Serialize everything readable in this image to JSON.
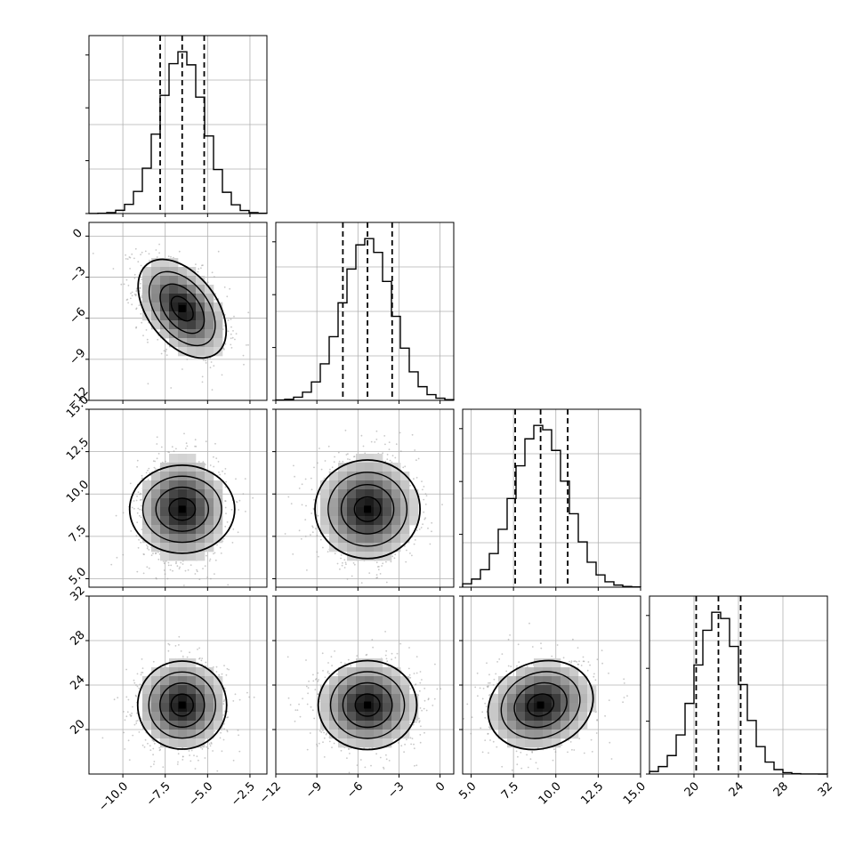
{
  "chart_data": {
    "type": "corner",
    "title": "",
    "grid": true,
    "params": [
      {
        "range": [
          -12.0,
          -1.5
        ],
        "ticks": [
          -10.0,
          -7.5,
          -5.0,
          -2.5
        ],
        "tick_labels": [
          "−10.0",
          "−7.5",
          "−5.0",
          "−2.5"
        ],
        "mean": -6.5,
        "sd": 1.3,
        "quantiles": [
          -7.8,
          -6.5,
          -5.2
        ]
      },
      {
        "range": [
          -12.0,
          1.0
        ],
        "ticks": [
          -12,
          -9,
          -6,
          -3,
          0
        ],
        "tick_labels": [
          "−12",
          "−9",
          "−6",
          "−3",
          "0"
        ],
        "mean": -5.3,
        "sd": 1.8,
        "quantiles": [
          -7.1,
          -5.3,
          -3.5
        ]
      },
      {
        "range": [
          4.5,
          15.0
        ],
        "ticks": [
          5.0,
          7.5,
          10.0,
          12.5,
          15.0
        ],
        "tick_labels": [
          "5.0",
          "7.5",
          "10.0",
          "12.5",
          "15.0"
        ],
        "mean": 9.1,
        "sd": 1.55,
        "quantiles": [
          7.6,
          9.1,
          10.7
        ]
      },
      {
        "range": [
          16.0,
          32.0
        ],
        "ticks": [
          20,
          24,
          28,
          32
        ],
        "tick_labels": [
          "20",
          "24",
          "28",
          "32"
        ],
        "mean": 22.2,
        "sd": 2.0,
        "quantiles": [
          20.2,
          22.2,
          24.2
        ]
      }
    ],
    "correlations": [
      {
        "i": 1,
        "j": 0,
        "rho": -0.45
      },
      {
        "i": 2,
        "j": 0,
        "rho": 0.0
      },
      {
        "i": 2,
        "j": 1,
        "rho": 0.0
      },
      {
        "i": 3,
        "j": 0,
        "rho": 0.0
      },
      {
        "i": 3,
        "j": 1,
        "rho": 0.0
      },
      {
        "i": 3,
        "j": 2,
        "rho": 0.15
      }
    ],
    "histogram_bins": 20,
    "contour_levels_sigma": [
      0.5,
      1.0,
      1.5,
      2.0
    ],
    "colors": {
      "line": "#000000",
      "grid": "#b0b0b0",
      "points": "#9a9a9a",
      "density_max": "#000000"
    }
  }
}
